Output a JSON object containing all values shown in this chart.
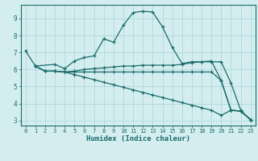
{
  "xlabel": "Humidex (Indice chaleur)",
  "bg_color": "#d4eef0",
  "line_color": "#1a6b6b",
  "grid_color": "#a8d4d8",
  "xlim": [
    -0.5,
    23.5
  ],
  "ylim": [
    2.7,
    9.8
  ],
  "xticks": [
    0,
    1,
    2,
    3,
    4,
    5,
    6,
    7,
    8,
    9,
    10,
    11,
    12,
    13,
    14,
    15,
    16,
    17,
    18,
    19,
    20,
    21,
    22,
    23
  ],
  "yticks": [
    3,
    4,
    5,
    6,
    7,
    8,
    9
  ],
  "line1_x": [
    0,
    1,
    3,
    4,
    5,
    6,
    7,
    8,
    9,
    10,
    11,
    12,
    13,
    14,
    15,
    16,
    17,
    18,
    19,
    20,
    21,
    22,
    23
  ],
  "line1_y": [
    7.1,
    6.2,
    6.3,
    6.05,
    6.5,
    6.7,
    6.8,
    7.8,
    7.6,
    8.6,
    9.35,
    9.42,
    9.38,
    8.5,
    7.3,
    6.35,
    6.45,
    6.45,
    6.45,
    6.45,
    5.2,
    3.6,
    3.05
  ],
  "line2_x": [
    1,
    2,
    3,
    4,
    5,
    6,
    7,
    8,
    9,
    10,
    11,
    12,
    13,
    14,
    15,
    16,
    17,
    18,
    19,
    20,
    21,
    22,
    23
  ],
  "line2_y": [
    6.2,
    5.9,
    5.9,
    5.85,
    5.9,
    6.0,
    6.05,
    6.1,
    6.15,
    6.2,
    6.2,
    6.25,
    6.25,
    6.25,
    6.25,
    6.3,
    6.4,
    6.45,
    6.5,
    5.35,
    3.6,
    3.55,
    3.05
  ],
  "line3_x": [
    1,
    2,
    3,
    4,
    5,
    6,
    7,
    8,
    9,
    10,
    11,
    12,
    13,
    14,
    15,
    16,
    17,
    18,
    19,
    20,
    21,
    22,
    23
  ],
  "line3_y": [
    6.2,
    5.9,
    5.9,
    5.85,
    5.85,
    5.85,
    5.85,
    5.85,
    5.85,
    5.85,
    5.85,
    5.85,
    5.85,
    5.85,
    5.85,
    5.85,
    5.85,
    5.85,
    5.85,
    5.35,
    3.6,
    3.55,
    3.05
  ],
  "line4_x": [
    1,
    2,
    3,
    4,
    5,
    6,
    7,
    8,
    9,
    10,
    11,
    12,
    13,
    14,
    15,
    16,
    17,
    18,
    19,
    20,
    21,
    22,
    23
  ],
  "line4_y": [
    6.2,
    5.9,
    5.9,
    5.85,
    5.7,
    5.55,
    5.4,
    5.25,
    5.1,
    4.95,
    4.8,
    4.65,
    4.5,
    4.35,
    4.2,
    4.05,
    3.9,
    3.75,
    3.6,
    3.3,
    3.6,
    3.55,
    3.05
  ]
}
